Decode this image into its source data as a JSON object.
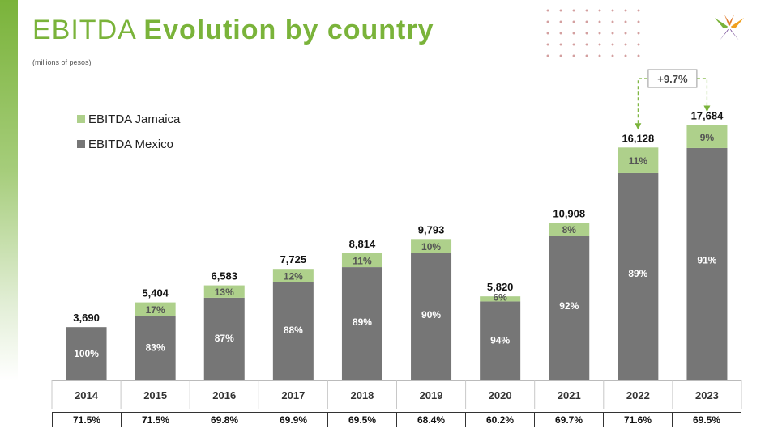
{
  "header": {
    "title_part1": "EBITDA",
    "title_part2": "Evolution by country",
    "subtitle": "(millions of pesos)"
  },
  "colors": {
    "mexico": "#767676",
    "jamaica": "#aed08b",
    "accent": "#7ab33a"
  },
  "chart_data": {
    "type": "bar",
    "stacked": true,
    "categories": [
      "2014",
      "2015",
      "2016",
      "2017",
      "2018",
      "2019",
      "2020",
      "2021",
      "2022",
      "2023"
    ],
    "totals": [
      3690,
      5404,
      6583,
      7725,
      8814,
      9793,
      5820,
      10908,
      16128,
      17684
    ],
    "total_labels": [
      "3,690",
      "5,404",
      "6,583",
      "7,725",
      "8,814",
      "9,793",
      "5,820",
      "10,908",
      "16,128",
      "17,684"
    ],
    "series": [
      {
        "name": "EBITDA Mexico",
        "share_labels": [
          "100%",
          "83%",
          "87%",
          "88%",
          "89%",
          "90%",
          "94%",
          "92%",
          "89%",
          "91%"
        ],
        "share": [
          1.0,
          0.83,
          0.87,
          0.88,
          0.89,
          0.9,
          0.94,
          0.92,
          0.89,
          0.91
        ]
      },
      {
        "name": "EBITDA Jamaica",
        "share_labels": [
          "",
          "17%",
          "13%",
          "12%",
          "11%",
          "10%",
          "6%",
          "8%",
          "11%",
          "9%"
        ],
        "share": [
          0,
          0.17,
          0.13,
          0.12,
          0.11,
          0.1,
          0.06,
          0.08,
          0.11,
          0.09
        ]
      }
    ],
    "legend": [
      "EBITDA Jamaica",
      "EBITDA Mexico"
    ],
    "legend_position": "top-left",
    "annotation": "+9.7%",
    "grid": false,
    "ylim": [
      0,
      18500
    ]
  },
  "margins_row": [
    "71.5%",
    "71.5%",
    "69.8%",
    "69.9%",
    "69.5%",
    "68.4%",
    "60.2%",
    "69.7%",
    "71.6%",
    "69.5%"
  ]
}
